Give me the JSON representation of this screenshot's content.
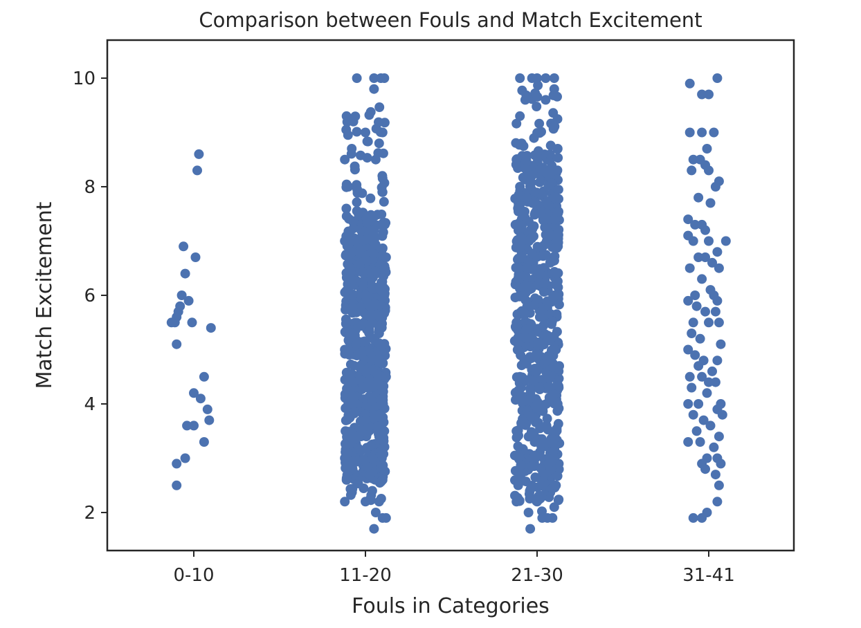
{
  "chart_data": {
    "type": "scatter",
    "subtype": "strip",
    "title": "Comparison between Fouls and Match Excitement",
    "xlabel": "Fouls in Categories",
    "ylabel": "Match Excitement",
    "categories": [
      "0-10",
      "11-20",
      "21-30",
      "31-41"
    ],
    "yticks": [
      2,
      4,
      6,
      8,
      10
    ],
    "ylim": [
      1.3,
      10.7
    ],
    "grid": false,
    "legend": "none",
    "marker_color": "#4c72b0",
    "series": [
      {
        "category": "0-10",
        "points": [
          [
            0.03,
            8.6
          ],
          [
            0.02,
            8.3
          ],
          [
            -0.06,
            6.9
          ],
          [
            0.01,
            6.7
          ],
          [
            -0.05,
            6.4
          ],
          [
            -0.07,
            6.0
          ],
          [
            -0.03,
            5.9
          ],
          [
            -0.08,
            5.8
          ],
          [
            -0.09,
            5.7
          ],
          [
            -0.1,
            5.6
          ],
          [
            -0.11,
            5.5
          ],
          [
            -0.13,
            5.5
          ],
          [
            -0.01,
            5.5
          ],
          [
            0.1,
            5.4
          ],
          [
            -0.1,
            5.1
          ],
          [
            0.06,
            4.5
          ],
          [
            0.0,
            4.2
          ],
          [
            0.04,
            4.1
          ],
          [
            0.08,
            3.9
          ],
          [
            0.09,
            3.7
          ],
          [
            -0.04,
            3.6
          ],
          [
            0.0,
            3.6
          ],
          [
            0.06,
            3.3
          ],
          [
            -0.05,
            3.0
          ],
          [
            -0.1,
            2.9
          ],
          [
            -0.1,
            2.5
          ]
        ]
      },
      {
        "category": "11-20",
        "points": [
          [
            -0.05,
            10.0
          ],
          [
            0.05,
            10.0
          ],
          [
            0.09,
            10.0
          ],
          [
            0.11,
            10.0
          ],
          [
            0.05,
            9.8
          ],
          [
            -0.11,
            9.3
          ],
          [
            -0.07,
            9.2
          ],
          [
            0.0,
            9.0
          ],
          [
            0.1,
            9.0
          ],
          [
            -0.08,
            8.7
          ],
          [
            0.08,
            8.8
          ],
          [
            -0.12,
            8.5
          ],
          [
            0.06,
            8.5
          ],
          [
            -0.1,
            8.0
          ],
          [
            0.1,
            7.9
          ],
          [
            -0.04,
            7.5
          ],
          [
            0.1,
            7.3
          ],
          [
            -0.12,
            7.0
          ],
          [
            0.12,
            6.7
          ],
          [
            -0.1,
            6.3
          ],
          [
            0.0,
            6.0
          ],
          [
            0.11,
            6.0
          ],
          [
            -0.11,
            5.5
          ],
          [
            0.08,
            5.3
          ],
          [
            -0.12,
            5.0
          ],
          [
            0.12,
            4.5
          ],
          [
            -0.1,
            4.0
          ],
          [
            0.0,
            3.7
          ],
          [
            0.11,
            3.5
          ],
          [
            -0.12,
            3.0
          ],
          [
            0.1,
            2.8
          ],
          [
            -0.11,
            2.6
          ],
          [
            0.1,
            2.6
          ],
          [
            -0.12,
            2.2
          ],
          [
            0.0,
            2.2
          ],
          [
            0.08,
            2.2
          ],
          [
            0.04,
            2.4
          ],
          [
            0.06,
            2.0
          ],
          [
            0.1,
            1.9
          ],
          [
            0.12,
            1.9
          ],
          [
            0.05,
            1.7
          ]
        ]
      },
      {
        "category": "21-30",
        "points": [
          [
            -0.1,
            10.0
          ],
          [
            -0.03,
            10.0
          ],
          [
            0.0,
            10.0
          ],
          [
            0.05,
            10.0
          ],
          [
            0.1,
            10.0
          ],
          [
            0.1,
            9.8
          ],
          [
            0.05,
            9.6
          ],
          [
            -0.1,
            9.3
          ],
          [
            0.1,
            9.1
          ],
          [
            -0.09,
            8.8
          ],
          [
            0.12,
            8.7
          ],
          [
            -0.12,
            8.5
          ],
          [
            0.1,
            8.3
          ],
          [
            -0.1,
            8.0
          ],
          [
            0.1,
            7.8
          ],
          [
            -0.12,
            7.3
          ],
          [
            0.12,
            7.0
          ],
          [
            -0.11,
            6.5
          ],
          [
            0.1,
            6.0
          ],
          [
            -0.12,
            5.5
          ],
          [
            0.11,
            5.0
          ],
          [
            -0.1,
            4.5
          ],
          [
            0.12,
            4.0
          ],
          [
            -0.12,
            3.5
          ],
          [
            0.1,
            3.0
          ],
          [
            -0.11,
            2.5
          ],
          [
            0.11,
            2.5
          ],
          [
            -0.12,
            2.2
          ],
          [
            0.0,
            2.2
          ],
          [
            0.1,
            2.1
          ],
          [
            -0.05,
            2.0
          ],
          [
            0.03,
            1.9
          ],
          [
            0.06,
            1.9
          ],
          [
            0.09,
            1.9
          ],
          [
            -0.04,
            1.7
          ]
        ]
      },
      {
        "category": "31-41",
        "points": [
          [
            -0.11,
            9.9
          ],
          [
            0.05,
            10.0
          ],
          [
            -0.04,
            9.7
          ],
          [
            0.0,
            9.7
          ],
          [
            -0.11,
            9.0
          ],
          [
            -0.04,
            9.0
          ],
          [
            0.03,
            9.0
          ],
          [
            -0.01,
            8.7
          ],
          [
            -0.09,
            8.5
          ],
          [
            -0.05,
            8.5
          ],
          [
            -0.02,
            8.4
          ],
          [
            0.0,
            8.3
          ],
          [
            -0.1,
            8.3
          ],
          [
            0.06,
            8.1
          ],
          [
            0.04,
            8.0
          ],
          [
            -0.06,
            7.8
          ],
          [
            0.01,
            7.7
          ],
          [
            -0.12,
            7.4
          ],
          [
            -0.08,
            7.3
          ],
          [
            -0.04,
            7.3
          ],
          [
            -0.02,
            7.2
          ],
          [
            -0.12,
            7.1
          ],
          [
            -0.09,
            7.0
          ],
          [
            0.0,
            7.0
          ],
          [
            0.1,
            7.0
          ],
          [
            0.05,
            6.8
          ],
          [
            -0.06,
            6.7
          ],
          [
            -0.02,
            6.7
          ],
          [
            0.02,
            6.6
          ],
          [
            0.06,
            6.5
          ],
          [
            -0.11,
            6.5
          ],
          [
            -0.04,
            6.3
          ],
          [
            0.01,
            6.1
          ],
          [
            -0.08,
            6.0
          ],
          [
            0.03,
            6.0
          ],
          [
            -0.12,
            5.9
          ],
          [
            0.05,
            5.9
          ],
          [
            -0.07,
            5.8
          ],
          [
            -0.02,
            5.7
          ],
          [
            0.04,
            5.7
          ],
          [
            -0.09,
            5.5
          ],
          [
            0.0,
            5.5
          ],
          [
            0.06,
            5.5
          ],
          [
            -0.1,
            5.3
          ],
          [
            -0.05,
            5.2
          ],
          [
            0.07,
            5.1
          ],
          [
            -0.12,
            5.0
          ],
          [
            -0.08,
            4.9
          ],
          [
            -0.03,
            4.8
          ],
          [
            0.05,
            4.8
          ],
          [
            -0.06,
            4.7
          ],
          [
            0.02,
            4.6
          ],
          [
            -0.11,
            4.5
          ],
          [
            -0.04,
            4.5
          ],
          [
            0.0,
            4.4
          ],
          [
            0.04,
            4.4
          ],
          [
            -0.1,
            4.3
          ],
          [
            -0.01,
            4.2
          ],
          [
            0.07,
            4.0
          ],
          [
            -0.12,
            4.0
          ],
          [
            -0.06,
            4.0
          ],
          [
            0.05,
            3.9
          ],
          [
            -0.09,
            3.8
          ],
          [
            0.08,
            3.8
          ],
          [
            -0.03,
            3.7
          ],
          [
            0.01,
            3.6
          ],
          [
            -0.07,
            3.5
          ],
          [
            0.06,
            3.4
          ],
          [
            -0.12,
            3.3
          ],
          [
            -0.05,
            3.3
          ],
          [
            0.03,
            3.2
          ],
          [
            -0.01,
            3.0
          ],
          [
            0.05,
            3.0
          ],
          [
            -0.04,
            2.9
          ],
          [
            0.07,
            2.9
          ],
          [
            -0.02,
            2.8
          ],
          [
            0.04,
            2.7
          ],
          [
            0.06,
            2.5
          ],
          [
            0.05,
            2.2
          ],
          [
            -0.01,
            2.0
          ],
          [
            -0.09,
            1.9
          ],
          [
            -0.04,
            1.9
          ]
        ]
      }
    ],
    "dense_bands": [
      {
        "category": "11-20",
        "core_range": [
          2.6,
          7.5
        ],
        "outer_range": [
          2.2,
          9.6
        ],
        "half_width": 0.12
      },
      {
        "category": "21-30",
        "core_range": [
          2.2,
          8.6
        ],
        "outer_range": [
          2.0,
          9.9
        ],
        "half_width": 0.13
      }
    ]
  }
}
